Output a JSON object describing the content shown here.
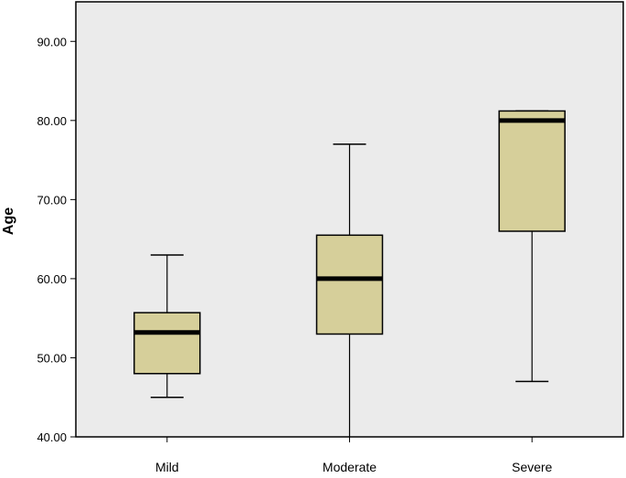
{
  "chart_data": {
    "type": "boxplot",
    "ylabel": "Age",
    "xlabel": "",
    "ylim": [
      40,
      95
    ],
    "yticks": [
      "40.00",
      "50.00",
      "60.00",
      "70.00",
      "80.00",
      "90.00"
    ],
    "categories": [
      "Mild",
      "Moderate",
      "Severe"
    ],
    "boxes": [
      {
        "category": "Mild",
        "min": 45,
        "q1": 48,
        "median": 53.2,
        "q3": 55.7,
        "max": 63
      },
      {
        "category": "Moderate",
        "min": 40,
        "q1": 53,
        "median": 60,
        "q3": 65.5,
        "max": 77
      },
      {
        "category": "Severe",
        "min": 47,
        "q1": 66,
        "median": 80,
        "q3": 81.2,
        "max": 81.2
      }
    ],
    "colors": {
      "plot_background": "#ebebeb",
      "box_fill": "#d6cf9a",
      "line": "#000000"
    },
    "grid": false,
    "legend": "none"
  }
}
